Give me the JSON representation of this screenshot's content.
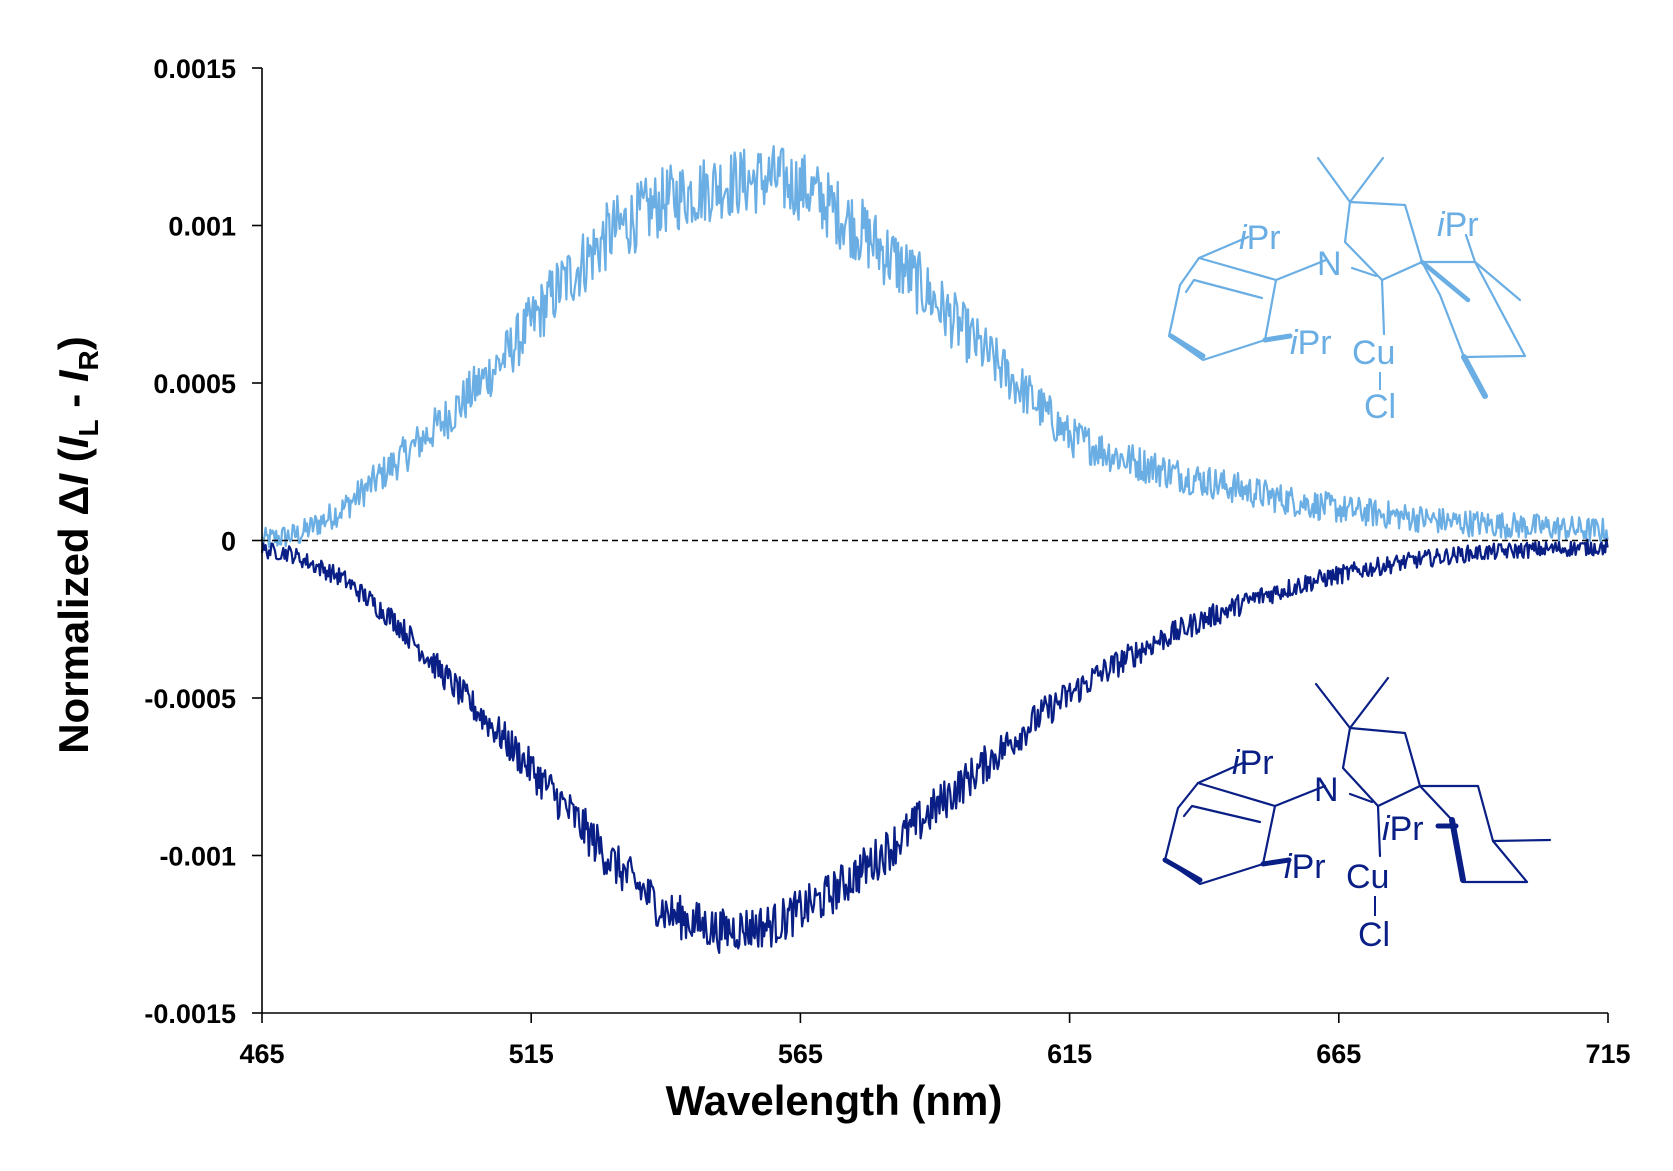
{
  "chart_data": {
    "type": "line",
    "xlabel": "Wavelength (nm)",
    "ylabel": {
      "prefix": "Normalized Δ",
      "italic_symbol": "I",
      "open": " (",
      "sub1": "L",
      "minus": " - ",
      "sub2": "R",
      "close": ")"
    },
    "xlim": [
      465,
      715
    ],
    "ylim": [
      -0.0015,
      0.0015
    ],
    "xticks": [
      465,
      515,
      565,
      615,
      665,
      715
    ],
    "xtick_labels": [
      "465",
      "515",
      "565",
      "615",
      "665",
      "715"
    ],
    "yticks": [
      0.0015,
      0.001,
      0.0005,
      0,
      -0.0005,
      -0.001,
      -0.0015
    ],
    "ytick_labels": [
      "0.0015",
      "0.001",
      "0.0005",
      "0",
      "-0.0005",
      "-0.001",
      "-0.0015"
    ],
    "zero_line": "dashed",
    "grid": false,
    "legend": "none",
    "series": [
      {
        "color": "#6aaee4",
        "noise_amplitude": 0.00011,
        "x": [
          465,
          472,
          480,
          490,
          500,
          510,
          520,
          530,
          540,
          550,
          560,
          566,
          575,
          585,
          595,
          605,
          615,
          625,
          635,
          645,
          655,
          665,
          675,
          685,
          695,
          705,
          715
        ],
        "y": [
          0.0,
          2e-05,
          0.0001,
          0.00025,
          0.0004,
          0.00058,
          0.0008,
          0.00098,
          0.00108,
          0.00113,
          0.00115,
          0.00112,
          0.001,
          0.00085,
          0.00067,
          0.0005,
          0.00033,
          0.00026,
          0.00021,
          0.00017,
          0.00013,
          0.0001,
          8e-05,
          6e-05,
          5e-05,
          4e-05,
          3e-05
        ]
      },
      {
        "color": "#0a1f85",
        "noise_amplitude": 7e-05,
        "x": [
          465,
          470,
          480,
          490,
          500,
          510,
          520,
          530,
          540,
          550,
          560,
          570,
          580,
          590,
          600,
          610,
          620,
          630,
          640,
          650,
          660,
          670,
          680,
          690,
          700,
          715
        ],
        "y": [
          -3e-05,
          -4e-05,
          -0.00012,
          -0.00026,
          -0.00045,
          -0.00063,
          -0.00082,
          -0.00102,
          -0.00118,
          -0.00124,
          -0.00122,
          -0.00113,
          -0.001,
          -0.00085,
          -0.0007,
          -0.00055,
          -0.00043,
          -0.00033,
          -0.00025,
          -0.00018,
          -0.00013,
          -9e-05,
          -6e-05,
          -4e-05,
          -3e-05,
          -2e-05
        ]
      }
    ],
    "structures": [
      {
        "color": "#6aaee4",
        "labels": {
          "iPr_top": "Pr",
          "iPr_top_i": "i",
          "iPr_aryl": "Pr",
          "iPr_aryl_i": "i",
          "iPr_ring": "Pr",
          "iPr_ring_i": "i",
          "N": "N",
          "Cu": "Cu",
          "Cl": "Cl"
        }
      },
      {
        "color": "#0a1f85",
        "labels": {
          "iPr_top": "Pr",
          "iPr_top_i": "i",
          "iPr_aryl": "Pr",
          "iPr_aryl_i": "i",
          "iPr_ring": "Pr",
          "iPr_ring_i": "i",
          "N": "N",
          "Cu": "Cu",
          "Cl": "Cl"
        }
      }
    ]
  }
}
